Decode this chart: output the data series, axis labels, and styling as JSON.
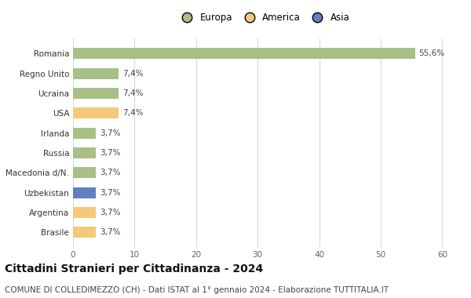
{
  "categories": [
    "Brasile",
    "Argentina",
    "Uzbekistan",
    "Macedonia d/N.",
    "Russia",
    "Irlanda",
    "USA",
    "Ucraina",
    "Regno Unito",
    "Romania"
  ],
  "values": [
    3.7,
    3.7,
    3.7,
    3.7,
    3.7,
    3.7,
    7.4,
    7.4,
    7.4,
    55.6
  ],
  "labels": [
    "3,7%",
    "3,7%",
    "3,7%",
    "3,7%",
    "3,7%",
    "3,7%",
    "7,4%",
    "7,4%",
    "7,4%",
    "55,6%"
  ],
  "colors": [
    "#f5c97a",
    "#f5c97a",
    "#6080bf",
    "#a8bf87",
    "#a8bf87",
    "#a8bf87",
    "#f5c97a",
    "#a8bf87",
    "#a8bf87",
    "#a8bf87"
  ],
  "legend": [
    {
      "label": "Europa",
      "color": "#a8bf87"
    },
    {
      "label": "America",
      "color": "#f5c97a"
    },
    {
      "label": "Asia",
      "color": "#6080bf"
    }
  ],
  "title": "Cittadini Stranieri per Cittadinanza - 2024",
  "subtitle": "COMUNE DI COLLEDIMEZZO (CH) - Dati ISTAT al 1° gennaio 2024 - Elaborazione TUTTITALIA.IT",
  "xlim": [
    0,
    62
  ],
  "xticks": [
    0,
    10,
    20,
    30,
    40,
    50,
    60
  ],
  "background_color": "#ffffff",
  "grid_color": "#d8d8d8",
  "bar_height": 0.55,
  "title_fontsize": 10,
  "subtitle_fontsize": 7.5,
  "label_fontsize": 7.5,
  "tick_fontsize": 7.5,
  "legend_fontsize": 8.5
}
